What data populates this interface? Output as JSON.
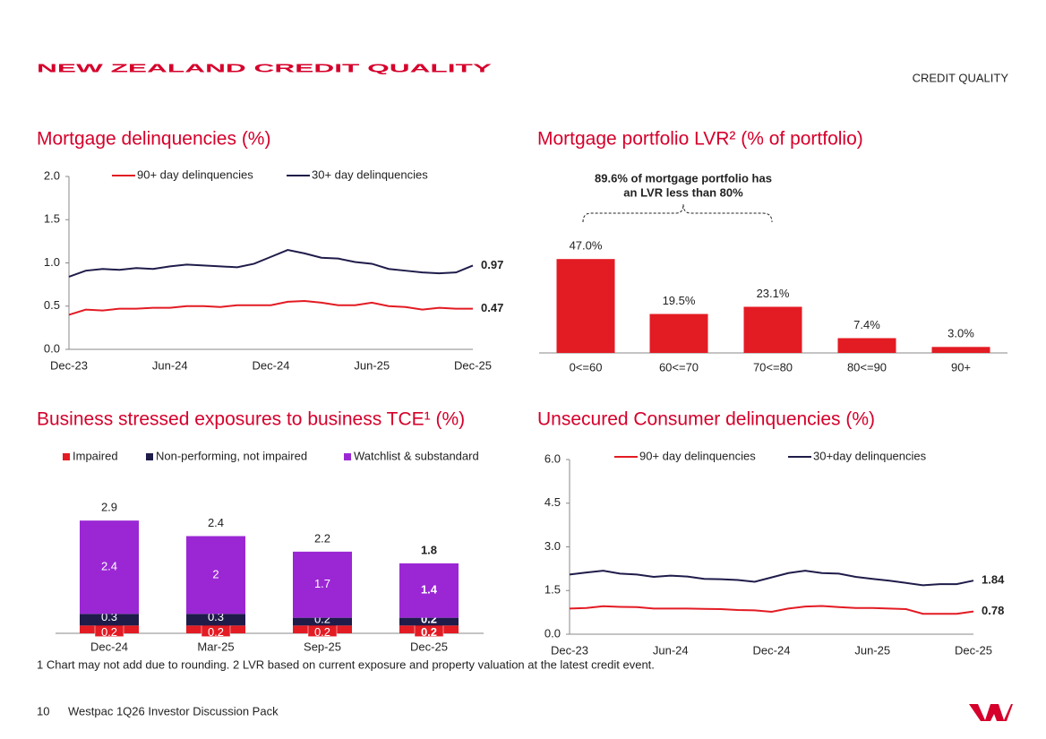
{
  "page": {
    "title": "NEW ZEALAND CREDIT QUALITY",
    "section": "CREDIT QUALITY",
    "footnote": "1 Chart may not add due to rounding. 2 LVR based on current exposure and property valuation at the latest credit event.",
    "page_number": "10",
    "footer": "Westpac 1Q26 Investor Discussion Pack"
  },
  "chart_data": [
    {
      "type": "line",
      "title": "Mortgage delinquencies (%)",
      "categories": [
        "Dec-23",
        null,
        null,
        null,
        null,
        null,
        "Jun-24",
        null,
        null,
        null,
        null,
        null,
        "Dec-24",
        null,
        null,
        null,
        null,
        null,
        "Jun-25",
        null,
        null,
        null,
        null,
        null,
        "Dec-25"
      ],
      "series": [
        {
          "name": "90+ day delinquencies",
          "color": "#e31b23",
          "values": [
            0.4,
            0.46,
            0.45,
            0.47,
            0.47,
            0.48,
            0.48,
            0.5,
            0.5,
            0.49,
            0.51,
            0.51,
            0.51,
            0.55,
            0.56,
            0.54,
            0.51,
            0.51,
            0.54,
            0.5,
            0.49,
            0.46,
            0.48,
            0.47,
            0.47
          ]
        },
        {
          "name": "30+ day delinquencies",
          "color": "#1f1c4a",
          "values": [
            0.84,
            0.91,
            0.93,
            0.92,
            0.94,
            0.93,
            0.96,
            0.98,
            0.97,
            0.96,
            0.95,
            0.99,
            1.07,
            1.15,
            1.11,
            1.06,
            1.05,
            1.01,
            0.99,
            0.93,
            0.91,
            0.89,
            0.88,
            0.89,
            0.97
          ]
        }
      ],
      "ylim": [
        0,
        2
      ],
      "yticks": [
        {
          "value": 0,
          "label": "0.0"
        },
        0.5,
        {
          "value": 1,
          "label": "1.0"
        },
        1.5,
        {
          "value": 2,
          "label": "2.0"
        }
      ],
      "legend": "top",
      "grid": false
    },
    {
      "type": "bar",
      "title": "Mortgage portfolio LVR² (% of portfolio)",
      "categories": [
        "0<=60",
        "60<=70",
        "70<=80",
        "80<=90",
        "90+"
      ],
      "values": [
        47.0,
        19.5,
        23.1,
        7.4,
        3.0
      ],
      "value_labels": [
        "47.0%",
        "19.5%",
        "23.1%",
        "7.4%",
        "3.0%"
      ],
      "color": "#e31b23",
      "annotation": [
        "89.6% of mortgage portfolio has",
        "an LVR less than 80%"
      ]
    },
    {
      "type": "stacked_bar",
      "title": "Business stressed exposures to business TCE¹ (%)",
      "categories": [
        "Dec-24",
        "Mar-25",
        "Sep-25",
        "Dec-25"
      ],
      "series": [
        {
          "name": "Impaired",
          "color": "#e31b23",
          "values": [
            0.2,
            0.2,
            0.2,
            0.2
          ]
        },
        {
          "name": "Non-performing, not impaired",
          "color": "#1f1c4a",
          "values": [
            0.3,
            0.3,
            0.2,
            0.2
          ]
        },
        {
          "name": "Watchlist & substandard",
          "color": "#9b27d4",
          "values": [
            2.4,
            2.0,
            1.7,
            1.4
          ]
        }
      ],
      "totals": [
        2.9,
        2.4,
        2.2,
        1.8
      ],
      "legend": "top"
    },
    {
      "type": "line",
      "title": "Unsecured Consumer delinquencies (%)",
      "categories": [
        "Dec-23",
        null,
        null,
        null,
        null,
        null,
        "Jun-24",
        null,
        null,
        null,
        null,
        null,
        "Dec-24",
        null,
        null,
        null,
        null,
        null,
        "Jun-25",
        null,
        null,
        null,
        null,
        null,
        "Dec-25"
      ],
      "series": [
        {
          "name": "90+ day delinquencies",
          "color": "#e31b23",
          "values": [
            0.88,
            0.9,
            0.96,
            0.94,
            0.93,
            0.88,
            0.88,
            0.88,
            0.87,
            0.86,
            0.83,
            0.82,
            0.77,
            0.88,
            0.95,
            0.97,
            0.93,
            0.9,
            0.9,
            0.88,
            0.86,
            0.7,
            0.7,
            0.7,
            0.78
          ]
        },
        {
          "name": "30+day delinquencies",
          "color": "#1f1c4a",
          "values": [
            2.05,
            2.12,
            2.18,
            2.08,
            2.05,
            1.97,
            2.01,
            1.98,
            1.9,
            1.89,
            1.86,
            1.8,
            1.95,
            2.1,
            2.18,
            2.1,
            2.08,
            1.97,
            1.9,
            1.84,
            1.76,
            1.68,
            1.72,
            1.72,
            1.84
          ]
        }
      ],
      "ylim": [
        0,
        6
      ],
      "yticks": [
        {
          "value": 0,
          "label": "0.0"
        },
        1.5,
        {
          "value": 3,
          "label": "3.0"
        },
        4.5,
        {
          "value": 6,
          "label": "6.0"
        }
      ],
      "legend": "top",
      "grid": false
    }
  ]
}
